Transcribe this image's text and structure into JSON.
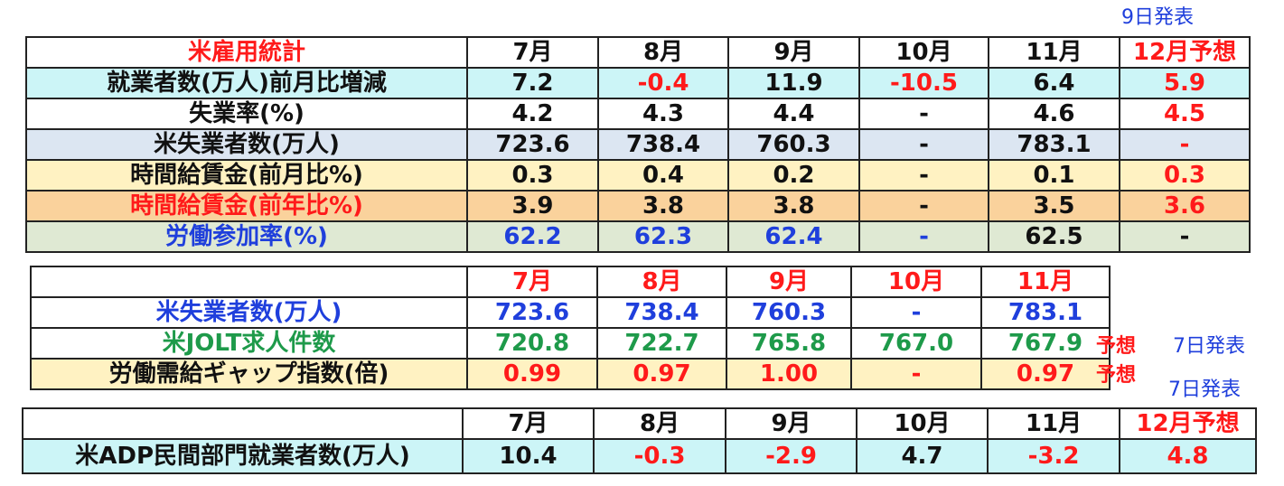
{
  "notes": {
    "t1_release": "9日発表",
    "jolt_release": "7日発表",
    "gap_release": "7日発表",
    "jolt_forecast": "予想",
    "gap_forecast": "予想"
  },
  "table1": {
    "title": "米雇用統計",
    "headers": [
      "7月",
      "8月",
      "9月",
      "10月",
      "11月",
      "12月予想"
    ],
    "rows": [
      {
        "label": "就業者数(万人)前月比増減",
        "values": [
          "7.2",
          "-0.4",
          "11.9",
          "-10.5",
          "6.4",
          "5.9"
        ]
      },
      {
        "label": "失業率(%)",
        "values": [
          "4.2",
          "4.3",
          "4.4",
          "-",
          "4.6",
          "4.5"
        ]
      },
      {
        "label": "米失業者数(万人)",
        "values": [
          "723.6",
          "738.4",
          "760.3",
          "-",
          "783.1",
          "-"
        ]
      },
      {
        "label": "時間給賃金(前月比%)",
        "values": [
          "0.3",
          "0.4",
          "0.2",
          "-",
          "0.1",
          "0.3"
        ]
      },
      {
        "label": "時間給賃金(前年比%)",
        "values": [
          "3.9",
          "3.8",
          "3.8",
          "-",
          "3.5",
          "3.6"
        ]
      },
      {
        "label": "労働参加率(%)",
        "values": [
          "62.2",
          "62.3",
          "62.4",
          "-",
          "62.5",
          "-"
        ]
      }
    ]
  },
  "table2": {
    "title": "",
    "headers": [
      "7月",
      "8月",
      "9月",
      "10月",
      "11月"
    ],
    "rows": [
      {
        "label": "米失業者数(万人)",
        "values": [
          "723.6",
          "738.4",
          "760.3",
          "-",
          "783.1"
        ]
      },
      {
        "label": "米JOLT求人件数",
        "values": [
          "720.8",
          "722.7",
          "765.8",
          "767.0",
          "767.9"
        ]
      },
      {
        "label": "労働需給ギャップ指数(倍)",
        "values": [
          "0.99",
          "0.97",
          "1.00",
          "-",
          "0.97"
        ]
      }
    ]
  },
  "table3": {
    "title": "",
    "headers": [
      "7月",
      "8月",
      "9月",
      "10月",
      "11月",
      "12月予想"
    ],
    "rows": [
      {
        "label": "米ADP民間部門就業者数(万人)",
        "values": [
          "10.4",
          "-0.3",
          "-2.9",
          "4.7",
          "-3.2",
          "4.8"
        ]
      }
    ]
  },
  "colors": {
    "red": "#ff1a1a",
    "blue": "#1f3fdc",
    "green": "#1e9a4a",
    "cyan_row": "#ccf5f7",
    "bluegray_row": "#dce6f2",
    "yellow_row": "#fff2c2",
    "orange_row": "#fad29c",
    "green_row": "#dfe9d3"
  }
}
